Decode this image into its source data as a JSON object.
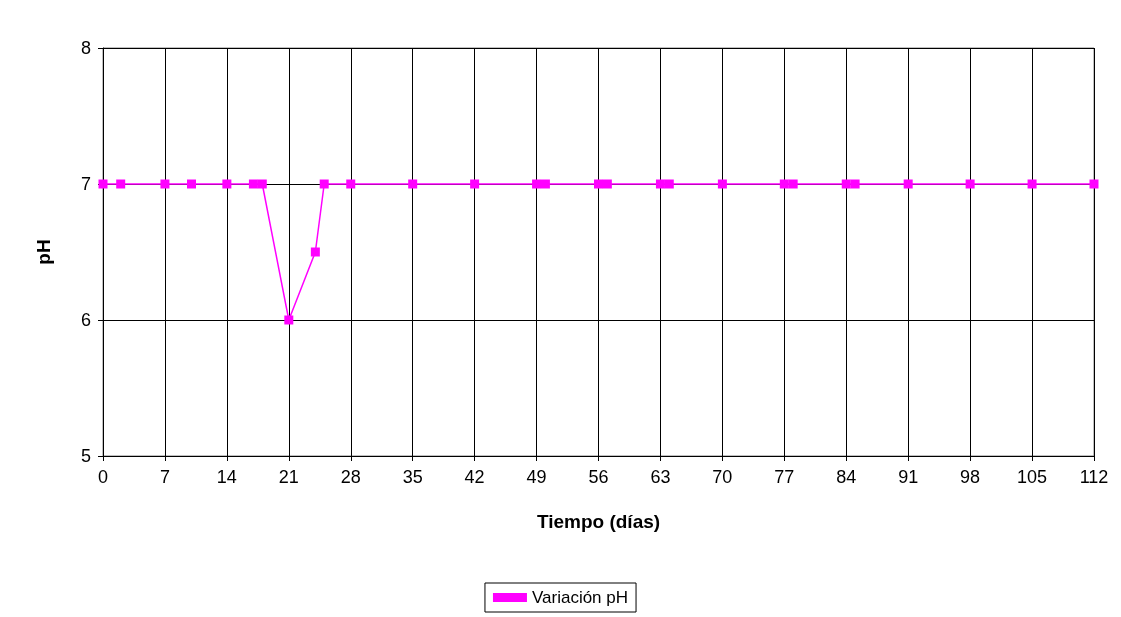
{
  "chart_data": {
    "type": "line",
    "xlabel": "Tiempo (días)",
    "ylabel": "pH",
    "x": [
      0,
      2,
      7,
      10,
      14,
      17,
      18,
      21,
      24,
      25,
      28,
      35,
      42,
      49,
      50,
      56,
      57,
      63,
      64,
      70,
      77,
      78,
      84,
      85,
      91,
      98,
      105,
      112
    ],
    "series": [
      {
        "name": "Variación pH",
        "color": "#ff00ff",
        "values": [
          7,
          7,
          7,
          7,
          7,
          7,
          7,
          6,
          6.5,
          7,
          7,
          7,
          7,
          7,
          7,
          7,
          7,
          7,
          7,
          7,
          7,
          7,
          7,
          7,
          7,
          7,
          7,
          7
        ]
      }
    ],
    "xlim": [
      0,
      112
    ],
    "xticks": [
      0,
      7,
      14,
      21,
      28,
      35,
      42,
      49,
      56,
      63,
      70,
      77,
      84,
      91,
      98,
      105,
      112
    ],
    "ylim": [
      5,
      8
    ],
    "yticks": [
      5,
      6,
      7,
      8
    ],
    "grid": true,
    "legend": "bottom",
    "marker": "square",
    "line_style": "solid"
  }
}
